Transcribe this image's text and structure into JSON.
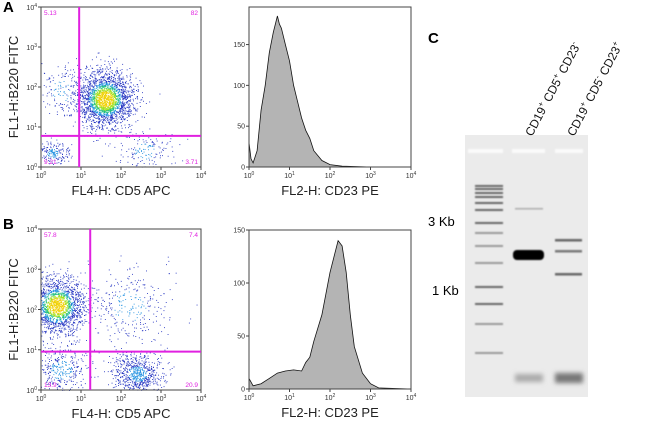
{
  "panel_labels": {
    "a": "A",
    "b": "B",
    "c": "C"
  },
  "chart_data": [
    {
      "type": "scatter",
      "panel": "A",
      "xlabel": "FL4-H: CD5 APC",
      "ylabel": "FL1-H:B220 FITC",
      "scale": "log",
      "xlim": [
        1,
        10000
      ],
      "ylim": [
        1,
        10000
      ],
      "x_ticks": [
        "10^0",
        "10^1",
        "10^2",
        "10^3",
        "10^4"
      ],
      "y_ticks": [
        "10^0",
        "10^1",
        "10^2",
        "10^3",
        "10^4"
      ],
      "gate": {
        "x": 9,
        "y": 6,
        "color": "#e020e0"
      },
      "quadrants": {
        "upper_left": "5.13",
        "upper_right": "82",
        "lower_left": "9.21",
        "lower_right": "3.71"
      },
      "populations": [
        {
          "center_log": [
            1.6,
            1.7
          ],
          "spread_log": [
            0.35,
            0.35
          ],
          "count": 2200
        },
        {
          "center_log": [
            0.3,
            0.35
          ],
          "spread_log": [
            0.2,
            0.15
          ],
          "count": 180
        },
        {
          "center_log": [
            2.6,
            0.4
          ],
          "spread_log": [
            0.35,
            0.25
          ],
          "count": 150
        },
        {
          "center_log": [
            0.5,
            1.9
          ],
          "spread_log": [
            0.3,
            0.35
          ],
          "count": 150
        }
      ]
    },
    {
      "type": "area",
      "panel": "A",
      "xlabel": "FL2-H: CD23 PE",
      "scale_x": "log",
      "xlim": [
        1,
        10000
      ],
      "ylim": [
        0,
        196
      ],
      "x_ticks": [
        "10^0",
        "10^1",
        "10^2",
        "10^3",
        "10^4"
      ],
      "y_ticks": [
        0,
        50,
        100,
        150
      ],
      "x_log": [
        0,
        0.05,
        0.1,
        0.2,
        0.3,
        0.4,
        0.5,
        0.6,
        0.7,
        0.75,
        0.8,
        0.9,
        1.0,
        1.1,
        1.2,
        1.3,
        1.4,
        1.5,
        1.6,
        1.8,
        2.0,
        2.3,
        3,
        4
      ],
      "y": [
        30,
        10,
        5,
        20,
        70,
        100,
        140,
        165,
        185,
        175,
        170,
        150,
        130,
        100,
        80,
        60,
        45,
        35,
        20,
        8,
        3,
        1,
        0,
        0
      ]
    },
    {
      "type": "scatter",
      "panel": "B",
      "xlabel": "FL4-H: CD5 APC",
      "ylabel": "FL1-H:B220 FITC",
      "scale": "log",
      "xlim": [
        1,
        10000
      ],
      "ylim": [
        1,
        10000
      ],
      "x_ticks": [
        "10^0",
        "10^1",
        "10^2",
        "10^3",
        "10^4"
      ],
      "y_ticks": [
        "10^0",
        "10^1",
        "10^2",
        "10^3",
        "10^4"
      ],
      "gate": {
        "x": 17,
        "y": 9,
        "color": "#e020e0"
      },
      "quadrants": {
        "upper_left": "57.8",
        "upper_right": "7.4",
        "lower_left": "13.9",
        "lower_right": "20.9"
      },
      "populations": [
        {
          "center_log": [
            0.4,
            2.1
          ],
          "spread_log": [
            0.35,
            0.35
          ],
          "count": 1800
        },
        {
          "center_log": [
            2.4,
            0.4
          ],
          "spread_log": [
            0.3,
            0.25
          ],
          "count": 700
        },
        {
          "center_log": [
            0.5,
            0.5
          ],
          "spread_log": [
            0.35,
            0.3
          ],
          "count": 350
        },
        {
          "center_log": [
            2.2,
            2.1
          ],
          "spread_log": [
            0.55,
            0.5
          ],
          "count": 300
        }
      ]
    },
    {
      "type": "area",
      "panel": "B",
      "xlabel": "FL2-H: CD23 PE",
      "scale_x": "log",
      "xlim": [
        1,
        10000
      ],
      "ylim": [
        0,
        150
      ],
      "x_ticks": [
        "10^0",
        "10^1",
        "10^2",
        "10^3",
        "10^4"
      ],
      "y_ticks": [
        0,
        50,
        100,
        150
      ],
      "x_log": [
        0,
        0.1,
        0.3,
        0.5,
        0.7,
        0.9,
        1.1,
        1.3,
        1.4,
        1.5,
        1.6,
        1.8,
        2.0,
        2.2,
        2.3,
        2.4,
        2.5,
        2.6,
        2.8,
        3.0,
        3.2,
        4
      ],
      "y": [
        10,
        3,
        5,
        10,
        15,
        17,
        18,
        17,
        25,
        30,
        45,
        70,
        110,
        140,
        135,
        110,
        70,
        40,
        15,
        5,
        1,
        0
      ]
    }
  ],
  "gel": {
    "markers": [
      "3 Kb",
      "1 Kb"
    ],
    "lanes": [
      {
        "label_parts": [
          "CD19",
          "+",
          " CD5",
          "+",
          " CD23",
          "-"
        ]
      },
      {
        "label_parts": [
          "CD19",
          "+",
          " CD5",
          "-",
          " CD23",
          "+"
        ]
      }
    ]
  }
}
